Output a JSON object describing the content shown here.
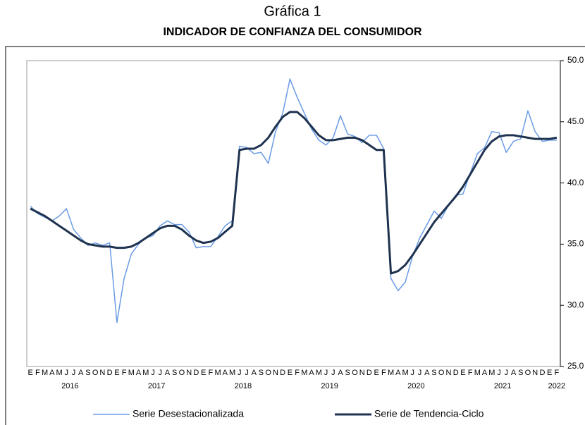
{
  "chart_data": {
    "type": "line",
    "title": "Gráfica 1",
    "subtitle": "INDICADOR DE CONFIANZA DEL CONSUMIDOR",
    "categories": [
      "E",
      "F",
      "M",
      "A",
      "M",
      "J",
      "J",
      "A",
      "S",
      "O",
      "N",
      "D",
      "E",
      "F",
      "M",
      "A",
      "M",
      "J",
      "J",
      "A",
      "S",
      "O",
      "N",
      "D",
      "E",
      "F",
      "M",
      "A",
      "M",
      "J",
      "J",
      "A",
      "S",
      "O",
      "N",
      "D",
      "E",
      "F",
      "M",
      "A",
      "M",
      "J",
      "J",
      "A",
      "S",
      "O",
      "N",
      "D",
      "E",
      "F",
      "M",
      "A",
      "M",
      "J",
      "J",
      "A",
      "S",
      "O",
      "N",
      "D",
      "E",
      "F",
      "M",
      "A",
      "M",
      "J",
      "J",
      "A",
      "S",
      "O",
      "N",
      "D",
      "E",
      "F"
    ],
    "years": [
      null,
      null,
      null,
      null,
      null,
      "2016",
      null,
      null,
      null,
      null,
      null,
      null,
      null,
      null,
      null,
      null,
      null,
      "2017",
      null,
      null,
      null,
      null,
      null,
      null,
      null,
      null,
      null,
      null,
      null,
      "2018",
      null,
      null,
      null,
      null,
      null,
      null,
      null,
      null,
      null,
      null,
      null,
      "2019",
      null,
      null,
      null,
      null,
      null,
      null,
      null,
      null,
      null,
      null,
      null,
      "2020",
      null,
      null,
      null,
      null,
      null,
      null,
      null,
      null,
      null,
      null,
      null,
      "2021",
      null,
      null,
      null,
      null,
      null,
      null,
      null,
      "2022"
    ],
    "series": [
      {
        "name": "Serie Desestacionalizada",
        "color": "#6a9be6",
        "width": 1.5,
        "values": [
          38.1,
          37.5,
          37.2,
          36.9,
          37.3,
          37.9,
          36.2,
          35.5,
          34.9,
          35.1,
          34.9,
          35.1,
          28.6,
          32.2,
          34.2,
          35.0,
          35.5,
          35.7,
          36.5,
          36.9,
          36.6,
          36.6,
          36.0,
          34.7,
          34.8,
          34.8,
          35.6,
          36.5,
          36.9,
          43.0,
          42.9,
          42.4,
          42.5,
          41.6,
          44.2,
          45.7,
          48.5,
          47.0,
          45.7,
          44.4,
          43.5,
          43.1,
          43.7,
          45.5,
          44.0,
          43.8,
          43.3,
          43.9,
          43.9,
          42.8,
          32.2,
          31.2,
          31.9,
          34.0,
          35.5,
          36.6,
          37.7,
          37.1,
          38.2,
          39.0,
          39.1,
          40.8,
          42.4,
          42.9,
          44.2,
          44.1,
          42.5,
          43.4,
          43.6,
          45.9,
          44.2,
          43.4,
          43.5,
          43.5
        ]
      },
      {
        "name": "Serie de Tendencia-Ciclo",
        "color": "#1f3350",
        "width": 3,
        "values": [
          37.9,
          37.6,
          37.3,
          36.9,
          36.5,
          36.1,
          35.7,
          35.3,
          35.0,
          34.9,
          34.8,
          34.8,
          34.7,
          34.7,
          34.8,
          35.1,
          35.5,
          35.9,
          36.3,
          36.5,
          36.5,
          36.2,
          35.7,
          35.3,
          35.1,
          35.2,
          35.5,
          36.0,
          36.5,
          42.7,
          42.8,
          42.8,
          43.1,
          43.7,
          44.6,
          45.4,
          45.8,
          45.8,
          45.3,
          44.6,
          43.9,
          43.5,
          43.5,
          43.6,
          43.7,
          43.7,
          43.5,
          43.1,
          42.7,
          42.7,
          32.6,
          32.8,
          33.3,
          34.1,
          35.0,
          35.9,
          36.8,
          37.5,
          38.2,
          38.9,
          39.7,
          40.7,
          41.7,
          42.7,
          43.4,
          43.8,
          43.9,
          43.9,
          43.8,
          43.7,
          43.6,
          43.6,
          43.6,
          43.7
        ]
      }
    ],
    "ylim": [
      25,
      50
    ],
    "yticks": [
      {
        "value": 25,
        "label": "25.0"
      },
      {
        "value": 30,
        "label": "30.0"
      },
      {
        "value": 35,
        "label": "35.0"
      },
      {
        "value": 40,
        "label": "40.0"
      },
      {
        "value": 45,
        "label": "45.0"
      },
      {
        "value": 50,
        "label": "50.0"
      }
    ]
  }
}
